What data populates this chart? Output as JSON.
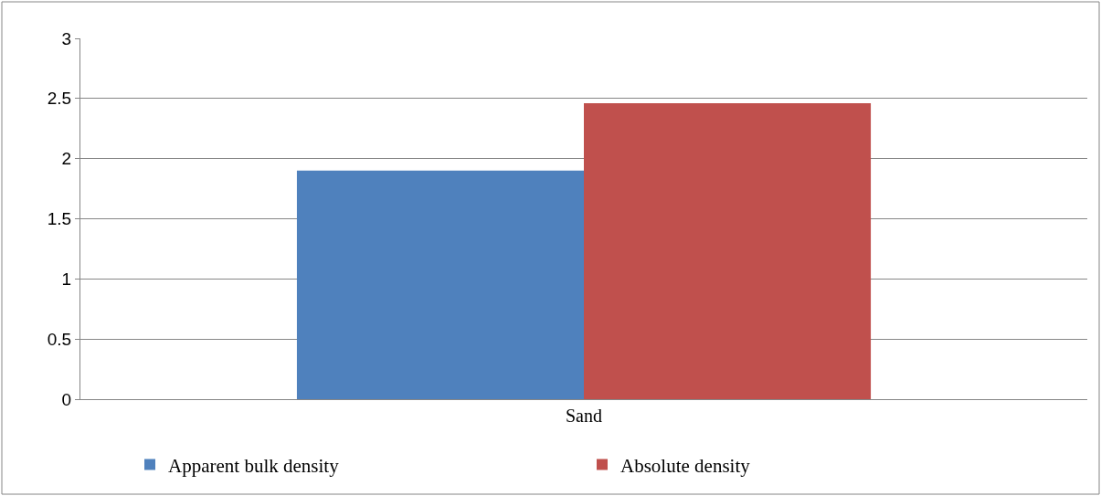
{
  "chart_data": {
    "type": "bar",
    "categories": [
      "Sand"
    ],
    "series": [
      {
        "name": "Apparent bulk density",
        "color": "#4f81bd",
        "values": [
          1.9
        ]
      },
      {
        "name": "Absolute density",
        "color": "#c0504d",
        "values": [
          2.46
        ]
      }
    ],
    "ylim": [
      0,
      3
    ],
    "yticks": [
      0,
      {
        "value": 0.5,
        "label": "0.5"
      },
      1,
      {
        "value": 1.5,
        "label": "1.5"
      },
      2,
      {
        "value": 2.5,
        "label": "2.5"
      },
      3
    ],
    "grid": "y",
    "legend": "bottom"
  }
}
